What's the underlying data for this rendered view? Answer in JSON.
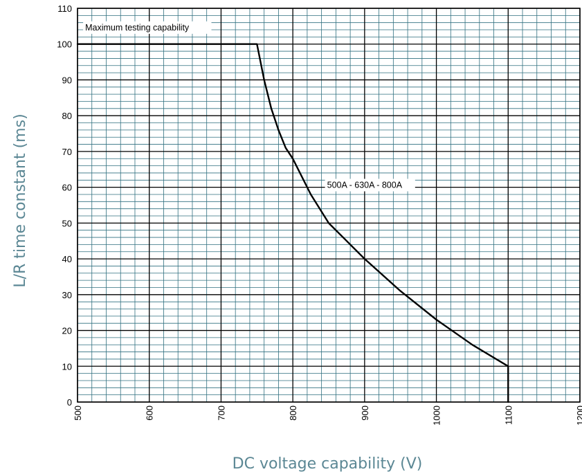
{
  "chart_data": {
    "type": "line",
    "title": "",
    "xlabel": "DC voltage capability (V)",
    "ylabel": "L/R time constant (ms)",
    "xlim": [
      500,
      1200
    ],
    "ylim": [
      0,
      110
    ],
    "x_ticks": [
      500,
      600,
      700,
      800,
      900,
      1000,
      1100,
      1200
    ],
    "y_ticks": [
      0,
      10,
      20,
      30,
      40,
      50,
      60,
      70,
      80,
      90,
      100,
      110
    ],
    "x_tick_labels": [
      "500",
      "600",
      "700",
      "800",
      "900",
      "1000",
      "1100",
      "1200"
    ],
    "y_tick_labels": [
      "0",
      "10",
      "20",
      "30",
      "40",
      "50",
      "60",
      "70",
      "80",
      "90",
      "100",
      "110"
    ],
    "minor_grid": {
      "x_step": 20,
      "y_step": 2
    },
    "grid": true,
    "series": [
      {
        "name": "500A - 630A - 800A",
        "x": [
          500,
          750,
          760,
          770,
          780,
          790,
          800,
          825,
          850,
          875,
          900,
          950,
          1000,
          1050,
          1100,
          1100
        ],
        "y": [
          100,
          100,
          90,
          82,
          76,
          71,
          68,
          58,
          50,
          45,
          40,
          31,
          23,
          16,
          10,
          0
        ]
      }
    ],
    "annotations": [
      {
        "text": "Maximum testing capability",
        "x": 503,
        "y": 105
      },
      {
        "text": "500A - 630A - 800A",
        "x": 840,
        "y": 61
      }
    ],
    "colors": {
      "grid": "#2f6f7f",
      "line": "#000000",
      "axis_title": "#5b8794"
    }
  }
}
